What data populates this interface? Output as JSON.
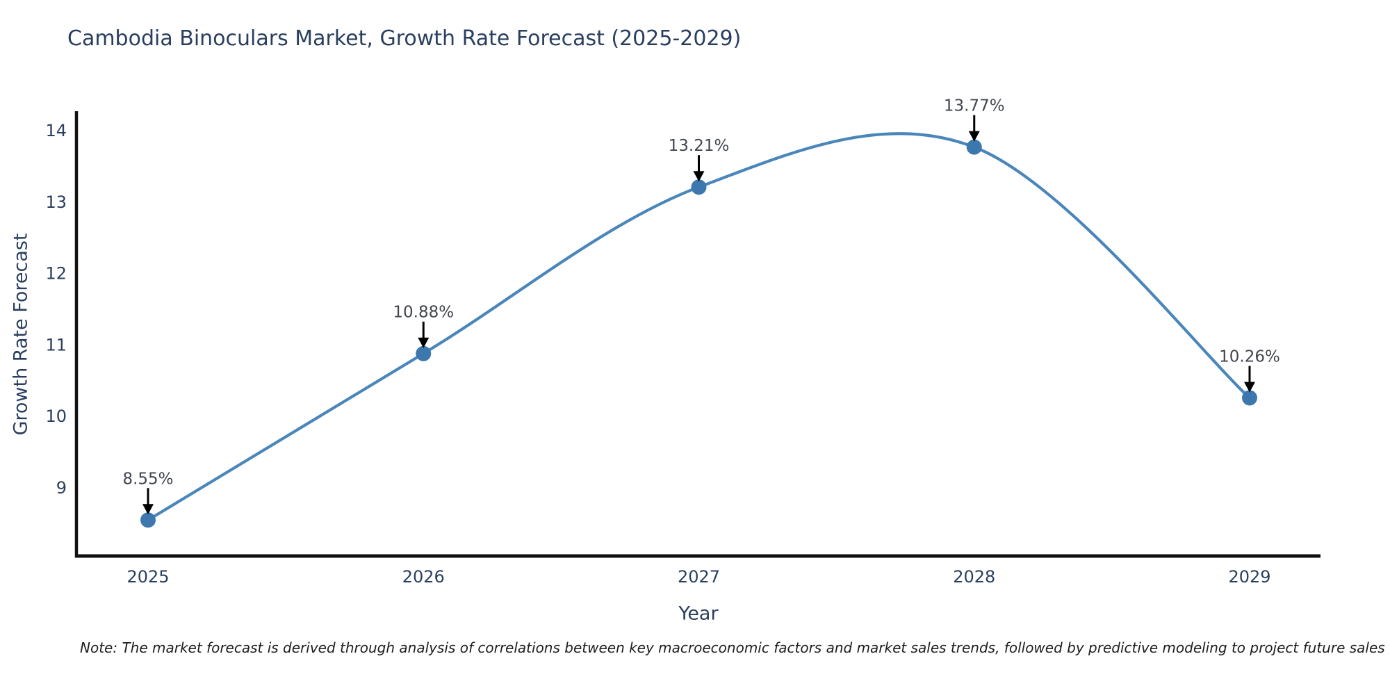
{
  "chart_data": {
    "type": "line",
    "title": "Cambodia Binoculars Market, Growth Rate Forecast (2025-2029)",
    "xlabel": "Year",
    "ylabel": "Growth Rate Forecast",
    "categories": [
      "2025",
      "2026",
      "2027",
      "2028",
      "2029"
    ],
    "values": [
      8.55,
      10.88,
      13.21,
      13.77,
      10.26
    ],
    "point_labels": [
      "8.55%",
      "10.88%",
      "13.21%",
      "13.77%",
      "10.26%"
    ],
    "yticks": [
      9,
      10,
      11,
      12,
      13,
      14
    ],
    "ylim": [
      8.03,
      14.27
    ],
    "grid": false,
    "legend_position": "none",
    "line_shape": "spline",
    "annotation_arrows": "black-down-arrow-to-point",
    "note": "Note: The market forecast is derived through analysis of correlations between key macroeconomic factors and market sales trends, followed by predictive modeling to project future sales",
    "colors": {
      "line": "#4a86ba",
      "marker": "#3c77ad",
      "axis_line": "#111111",
      "axis_text": "#2a3f5f",
      "annotation_text": "#42464e",
      "note_text": "#1d1d1d",
      "background": "#ffffff"
    }
  }
}
